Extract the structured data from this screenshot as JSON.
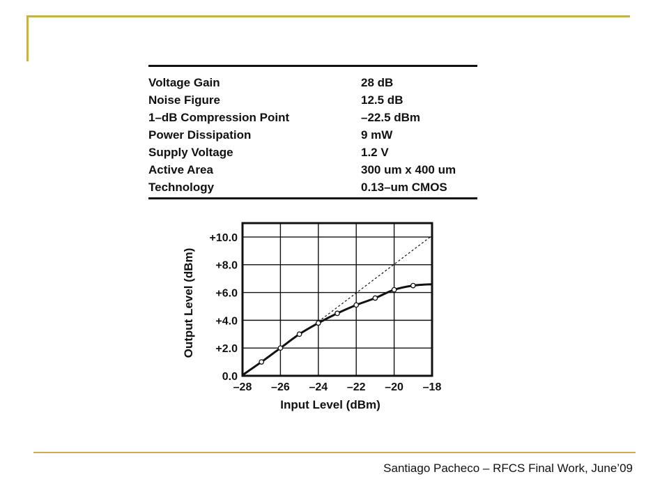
{
  "spec_table": {
    "rows": [
      {
        "param": "Voltage Gain",
        "value": "28 dB"
      },
      {
        "param": "Noise Figure",
        "value": "12.5 dB"
      },
      {
        "param": "1–dB Compression Point",
        "value": "–22.5 dBm"
      },
      {
        "param": "Power Dissipation",
        "value": "9 mW"
      },
      {
        "param": "Supply Voltage",
        "value": "1.2 V"
      },
      {
        "param": "Active Area",
        "value": "300 um x 400 um"
      },
      {
        "param": "Technology",
        "value": "0.13–um CMOS"
      }
    ]
  },
  "chart_data": {
    "type": "line",
    "xlabel": "Input Level (dBm)",
    "ylabel": "Output Level (dBm)",
    "xlim": [
      -28,
      -18
    ],
    "ylim": [
      0,
      11
    ],
    "x_ticks": [
      -28,
      -26,
      -24,
      -22,
      -20,
      -18
    ],
    "x_tick_labels": [
      "–28",
      "–26",
      "–24",
      "–22",
      "–20",
      "–18"
    ],
    "y_ticks": [
      0,
      2,
      4,
      6,
      8,
      10
    ],
    "y_tick_labels": [
      "0.0",
      "+2.0",
      "+4.0",
      "+6.0",
      "+8.0",
      "+10.0"
    ],
    "grid": true,
    "series": [
      {
        "style": "solid-with-markers",
        "x": [
          -27,
          -26,
          -25,
          -24,
          -23,
          -22,
          -21,
          -20,
          -19
        ],
        "y": [
          1.0,
          2.0,
          3.0,
          3.8,
          4.5,
          5.1,
          5.6,
          6.2,
          6.5
        ]
      },
      {
        "style": "dashed-linear-extrapolation",
        "x": [
          -24,
          -18
        ],
        "y": [
          3.9,
          10.1
        ]
      }
    ],
    "curve_endpoints": {
      "start": [
        -28,
        0.05
      ],
      "end": [
        -18,
        6.6
      ]
    }
  },
  "footer": {
    "text": "Santiago Pacheco – RFCS Final Work, June’09"
  },
  "colors": {
    "accent_rule": "#c8b04a",
    "ink": "#111111"
  }
}
